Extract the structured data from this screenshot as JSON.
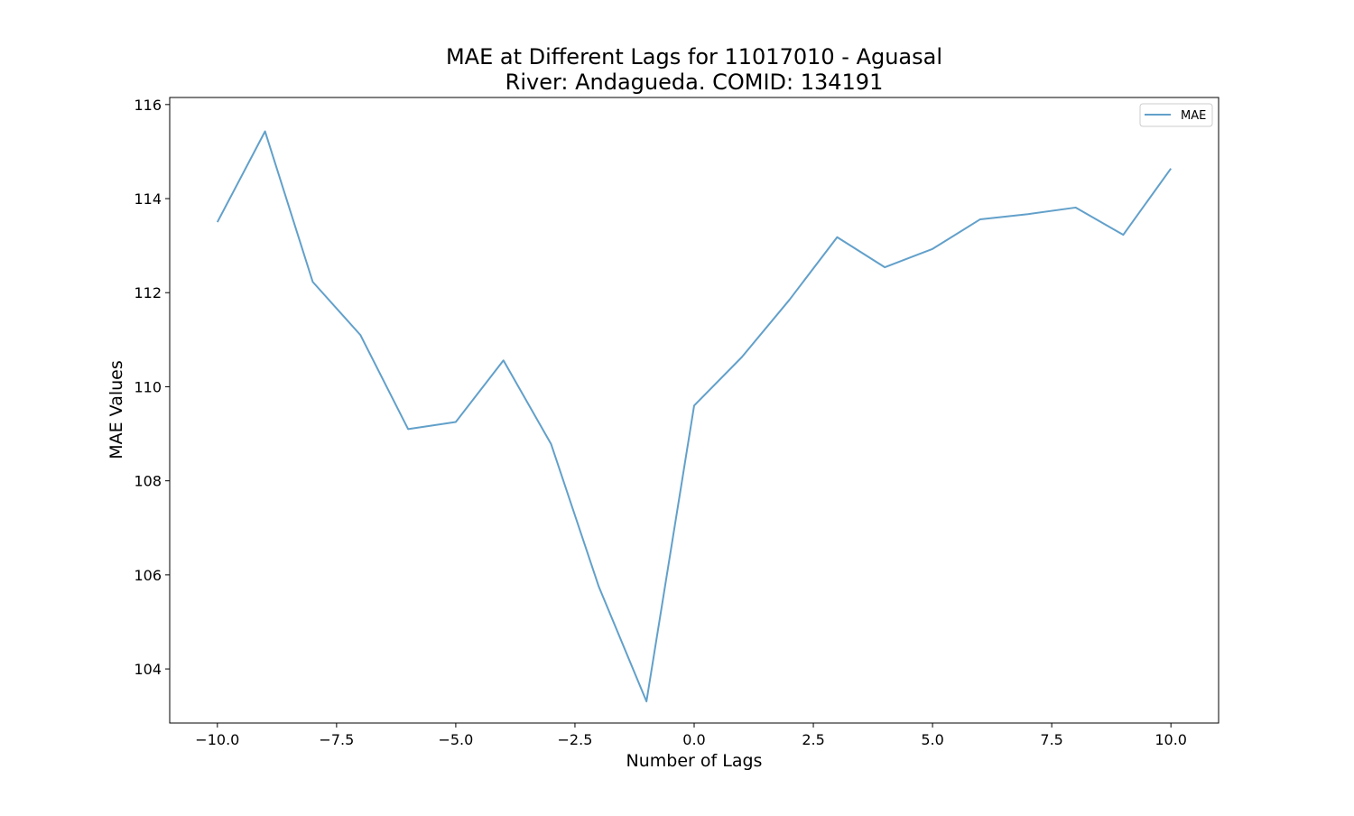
{
  "chart_data": {
    "type": "line",
    "title_line1": "MAE at Different Lags for 11017010 - Aguasal",
    "title_line2": "River: Andagueda. COMID: 134191",
    "xlabel": "Number of Lags",
    "ylabel": "MAE Values",
    "xlim": [
      -11,
      11
    ],
    "ylim": [
      102.85,
      116.15
    ],
    "xticks": [
      -10.0,
      -7.5,
      -5.0,
      -2.5,
      0.0,
      2.5,
      5.0,
      7.5,
      10.0
    ],
    "xtick_labels": [
      "−10.0",
      "−7.5",
      "−5.0",
      "−2.5",
      "0.0",
      "2.5",
      "5.0",
      "7.5",
      "10.0"
    ],
    "yticks": [
      104,
      106,
      108,
      110,
      112,
      114,
      116
    ],
    "ytick_labels": [
      "104",
      "106",
      "108",
      "110",
      "112",
      "114",
      "116"
    ],
    "grid": false,
    "legend_position": "top-right",
    "series": [
      {
        "name": "MAE",
        "color": "#1f77b4",
        "x": [
          -10,
          -9,
          -8,
          -7,
          -6,
          -5,
          -4,
          -3,
          -2,
          -1,
          0,
          1,
          2,
          3,
          4,
          5,
          6,
          7,
          8,
          9,
          10
        ],
        "y": [
          113.5,
          115.43,
          112.23,
          111.1,
          109.1,
          109.25,
          110.56,
          108.78,
          105.75,
          103.31,
          109.6,
          110.63,
          111.85,
          113.18,
          112.54,
          112.93,
          113.56,
          113.67,
          113.81,
          113.23,
          114.64
        ]
      }
    ]
  }
}
